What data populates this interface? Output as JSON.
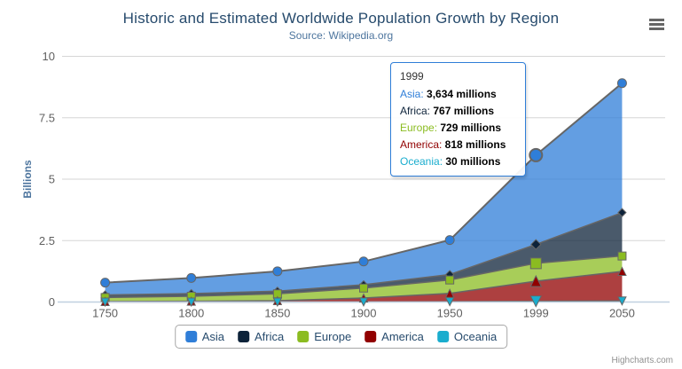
{
  "title": "Historic and Estimated Worldwide Population Growth by Region",
  "subtitle": "Source: Wikipedia.org",
  "credits": "Highcharts.com",
  "context_menu_icon": "hamburger-icon",
  "colors": {
    "title": "#274b6d",
    "subtitle": "#4d759e",
    "axis_labels": "#606060",
    "gridline": "#d6d6d6",
    "axis_line": "#c0d0e0",
    "series_outline": "#666666",
    "tooltip_border": "#2f7ed8",
    "legend_text": "#274b6d"
  },
  "chart_data": {
    "type": "area",
    "stacking": "normal",
    "title": "Historic and Estimated Worldwide Population Growth by Region",
    "subtitle": "Source: Wikipedia.org",
    "categories": [
      "1750",
      "1800",
      "1850",
      "1900",
      "1950",
      "1999",
      "2050"
    ],
    "xlabel": "",
    "ylabel": "Billions",
    "ylim": [
      0,
      10
    ],
    "yAxis": {
      "title": "Billions",
      "ticks": [
        0,
        2.5,
        5,
        7.5,
        10
      ],
      "max": 10
    },
    "values_unit": "millions",
    "grid": "horizontal-only",
    "legend_position": "bottom-center",
    "stack_order_bottom_to_top": [
      "Oceania",
      "America",
      "Europe",
      "Africa",
      "Asia"
    ],
    "hover_index": 5,
    "series": [
      {
        "name": "Asia",
        "color": "#2f7ed8",
        "marker": "circle",
        "values": [
          502,
          635,
          809,
          947,
          1402,
          3634,
          5268
        ]
      },
      {
        "name": "Africa",
        "color": "#0d233a",
        "marker": "diamond",
        "values": [
          106,
          107,
          111,
          133,
          221,
          767,
          1766
        ]
      },
      {
        "name": "Europe",
        "color": "#8bbc21",
        "marker": "square",
        "values": [
          163,
          203,
          276,
          408,
          547,
          729,
          628
        ]
      },
      {
        "name": "America",
        "color": "#910000",
        "marker": "triangle",
        "values": [
          18,
          31,
          54,
          156,
          339,
          818,
          1201
        ]
      },
      {
        "name": "Oceania",
        "color": "#1aadce",
        "marker": "triangle-down",
        "values": [
          2,
          2,
          2,
          6,
          13,
          30,
          46
        ]
      }
    ]
  },
  "tooltip": {
    "header": "1999",
    "rows": [
      {
        "label": "Asia",
        "color": "#2f7ed8",
        "value": "3,634 millions"
      },
      {
        "label": "Africa",
        "color": "#0d233a",
        "value": "767 millions"
      },
      {
        "label": "Europe",
        "color": "#8bbc21",
        "value": "729 millions"
      },
      {
        "label": "America",
        "color": "#910000",
        "value": "818 millions"
      },
      {
        "label": "Oceania",
        "color": "#1aadce",
        "value": "30 millions"
      }
    ]
  },
  "legend": {
    "items": [
      {
        "label": "Asia",
        "color": "#2f7ed8"
      },
      {
        "label": "Africa",
        "color": "#0d233a"
      },
      {
        "label": "Europe",
        "color": "#8bbc21"
      },
      {
        "label": "America",
        "color": "#910000"
      },
      {
        "label": "Oceania",
        "color": "#1aadce"
      }
    ]
  }
}
